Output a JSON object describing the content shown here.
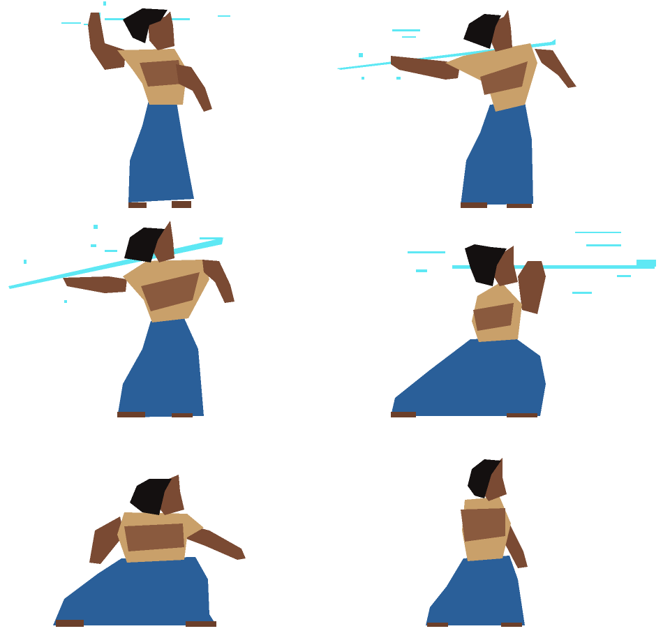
{
  "sprite_sheet": {
    "frame_count": 6,
    "colors": {
      "skin": "#7a4a33",
      "skin_shade": "#8e5a40",
      "top_light": "#c9a06a",
      "top_dark": "#8a5a3e",
      "skirt": "#2a5f99",
      "hair": "#141010",
      "water": "#5ee8f4",
      "sandal": "#6b3f2a",
      "horn": "#c9a06a"
    },
    "frames": [
      {
        "pose": "hand-raised",
        "has_water": true
      },
      {
        "pose": "arm-thrust",
        "has_water": true
      },
      {
        "pose": "arm-thrust-wide",
        "has_water": true
      },
      {
        "pose": "crouch-throw",
        "has_water": true
      },
      {
        "pose": "crouch-extend",
        "has_water": false
      },
      {
        "pose": "recover",
        "has_water": false
      }
    ]
  }
}
